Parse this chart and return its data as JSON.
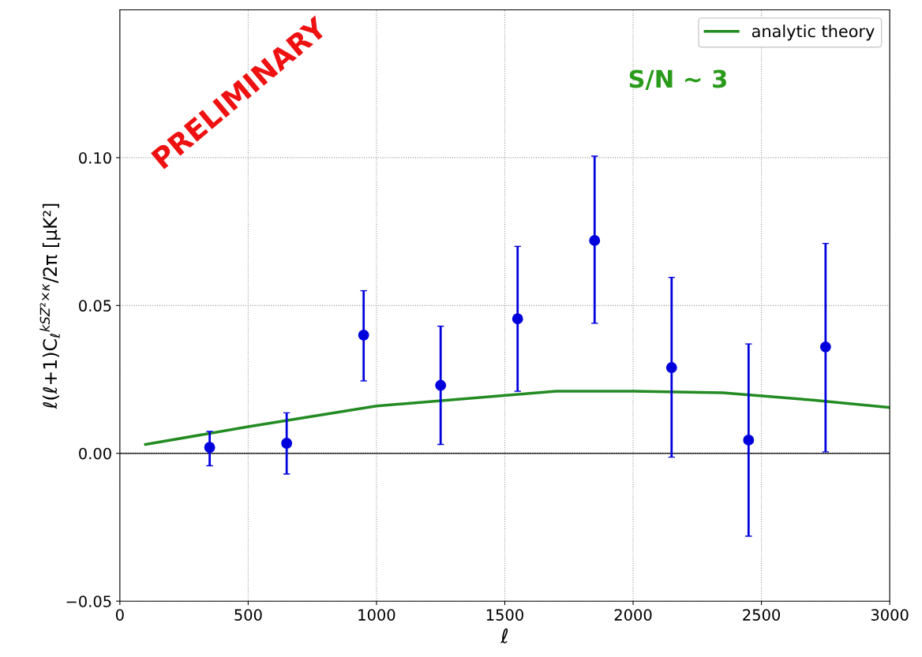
{
  "chart_data": {
    "type": "scatter",
    "xlabel": "ℓ",
    "ylabel": "ℓ(ℓ+1)C$_{ℓ}$$^{kSZ²×κ}$/2π [μK²]",
    "annotations": [
      "PRELIMINARY",
      "S/N ~ 3"
    ],
    "xlim": [
      0,
      3000
    ],
    "xticks": [
      0,
      500,
      1000,
      1500,
      2000,
      2500,
      3000
    ],
    "ylim": [
      -0.05,
      0.15
    ],
    "yticks": [
      {
        "value": -0.05,
        "label": "−0.05"
      },
      {
        "value": 0,
        "label": "0.00"
      },
      {
        "value": 0.05,
        "label": "0.05"
      },
      {
        "value": 0.1,
        "label": "0.10"
      }
    ],
    "series": [
      {
        "color": "#0000dd",
        "marker": "circle",
        "x": [
          350,
          650,
          950,
          1250,
          1550,
          1850,
          2150,
          2450,
          2750
        ],
        "values": [
          0.002,
          0.0034,
          0.04,
          0.023,
          0.0455,
          0.072,
          0.029,
          0.0045,
          0.036
        ],
        "errors": [
          [
            -0.0042,
            0.0074
          ],
          [
            -0.007,
            0.0137
          ],
          [
            0.0245,
            0.055
          ],
          [
            0.003,
            0.043
          ],
          [
            0.021,
            0.07
          ],
          [
            0.044,
            0.1005
          ],
          [
            -0.0013,
            0.0595
          ],
          [
            -0.028,
            0.037
          ],
          [
            0.0005,
            0.071
          ]
        ]
      },
      {
        "type": "line",
        "name": "analytic theory",
        "color": "#228b22",
        "x": [
          100,
          500,
          1000,
          1700,
          2000,
          2350,
          2700,
          3000
        ],
        "values": [
          0.003,
          0.009,
          0.016,
          0.021,
          0.021,
          0.0205,
          0.018,
          0.0155
        ]
      }
    ],
    "ref_lines": [
      {
        "axis": "y",
        "value": 0,
        "color": "#000000"
      }
    ],
    "grid": true,
    "legend": "top right"
  }
}
